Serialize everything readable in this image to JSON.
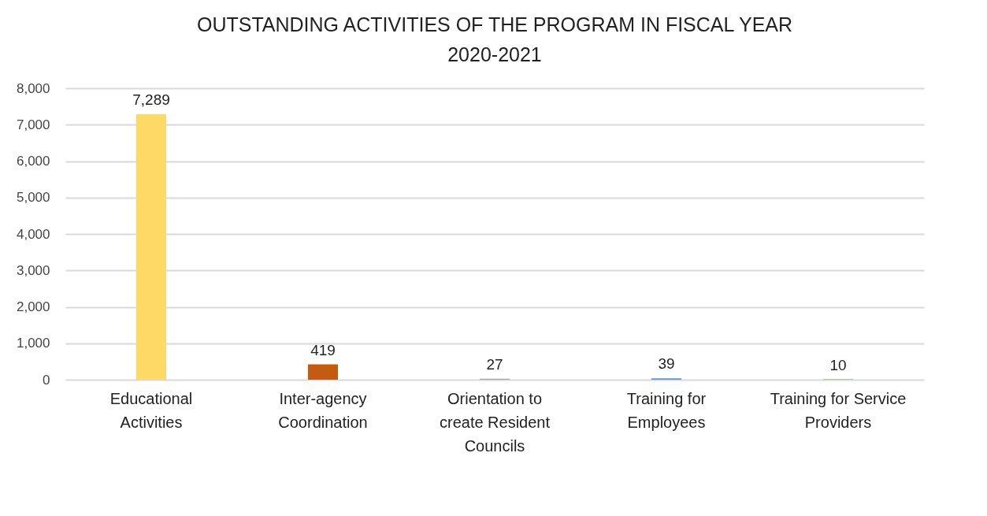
{
  "chart_data": {
    "type": "bar",
    "title": "OUTSTANDING ACTIVITIES OF THE PROGRAM IN FISCAL YEAR 2020-2021",
    "categories": [
      "Educational Activities",
      "Inter-agency Coordination",
      "Orientation to create Resident Councils",
      "Training for Employees",
      "Training for Service Providers"
    ],
    "values": [
      7289,
      419,
      27,
      39,
      10
    ],
    "value_labels": [
      "7,289",
      "419",
      "27",
      "39",
      "10"
    ],
    "colors": [
      "#ffd966",
      "#c55a11",
      "#a5a5a5",
      "#5b9bd5",
      "#70ad47"
    ],
    "ylim": [
      0,
      8000
    ],
    "yticks": [
      0,
      {
        "value": 1000,
        "label": "1,000"
      },
      {
        "value": 2000,
        "label": "2,000"
      },
      {
        "value": 3000,
        "label": "3,000"
      },
      {
        "value": 4000,
        "label": "4,000"
      },
      {
        "value": 5000,
        "label": "5,000"
      },
      {
        "value": 6000,
        "label": "6,000"
      },
      {
        "value": 7000,
        "label": "7,000"
      },
      {
        "value": 8000,
        "label": "8,000"
      }
    ],
    "grid": "y"
  }
}
